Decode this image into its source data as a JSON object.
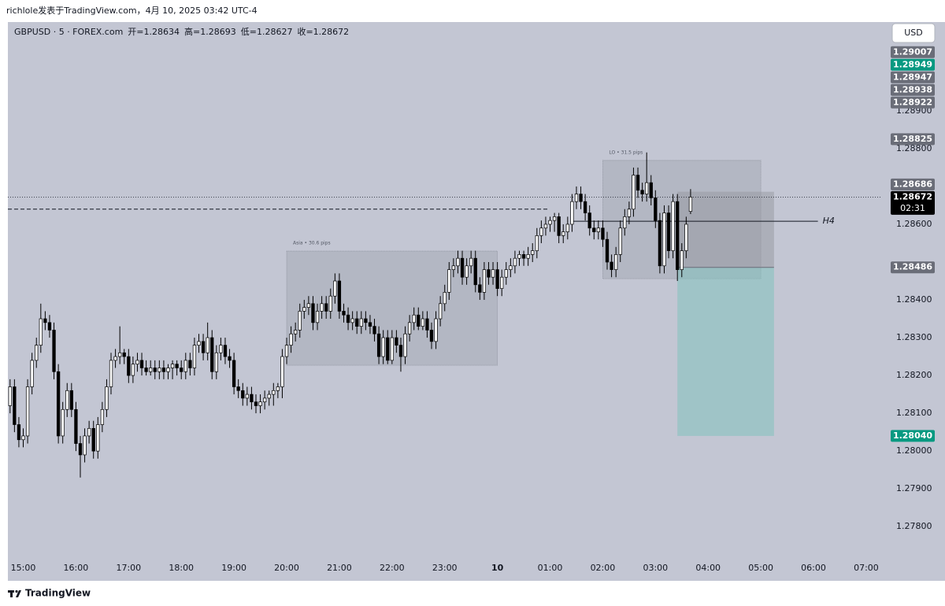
{
  "caption": "richlole发表于TradingView.com，4月 10, 2025 03:42 UTC-4",
  "brand": "TradingView",
  "currency_button": "USD",
  "chart_data": {
    "type": "candlestick",
    "title": "GBPUSD · 5 · FOREX.com",
    "ohlc_labels": [
      "开=",
      "高=",
      "低=",
      "收="
    ],
    "ohlc": [
      [
        1.2812,
        1.2819,
        1.281,
        1.2817
      ],
      [
        1.2817,
        1.2819,
        1.2805,
        1.2807
      ],
      [
        1.2807,
        1.2809,
        1.2801,
        1.2803
      ],
      [
        1.2803,
        1.2806,
        1.2801,
        1.2804
      ],
      [
        1.2804,
        1.2819,
        1.2802,
        1.2817
      ],
      [
        1.2817,
        1.2826,
        1.2815,
        1.2824
      ],
      [
        1.2824,
        1.283,
        1.2822,
        1.2828
      ],
      [
        1.2828,
        1.2839,
        1.2826,
        1.2835
      ],
      [
        1.2835,
        1.2837,
        1.2832,
        1.2834
      ],
      [
        1.2834,
        1.2836,
        1.283,
        1.2832
      ],
      [
        1.2832,
        1.2834,
        1.2819,
        1.2821
      ],
      [
        1.2821,
        1.2823,
        1.2802,
        1.2804
      ],
      [
        1.2804,
        1.2813,
        1.2802,
        1.2811
      ],
      [
        1.2811,
        1.2818,
        1.2809,
        1.2816
      ],
      [
        1.2816,
        1.2818,
        1.2809,
        1.2811
      ],
      [
        1.2811,
        1.2813,
        1.28,
        1.2802
      ],
      [
        1.2802,
        1.2804,
        1.2793,
        1.2799
      ],
      [
        1.2799,
        1.2806,
        1.2797,
        1.2804
      ],
      [
        1.2804,
        1.2808,
        1.2802,
        1.2806
      ],
      [
        1.2806,
        1.2808,
        1.2798,
        1.28
      ],
      [
        1.28,
        1.2809,
        1.2798,
        1.2807
      ],
      [
        1.2807,
        1.2813,
        1.2805,
        1.2811
      ],
      [
        1.2811,
        1.2819,
        1.2809,
        1.2817
      ],
      [
        1.2817,
        1.2826,
        1.2815,
        1.2824
      ],
      [
        1.2824,
        1.2827,
        1.2822,
        1.2825
      ],
      [
        1.2825,
        1.2833,
        1.2823,
        1.2826
      ],
      [
        1.2826,
        1.2827,
        1.2823,
        1.2825
      ],
      [
        1.2825,
        1.2827,
        1.2818,
        1.282
      ],
      [
        1.282,
        1.2825,
        1.2818,
        1.2823
      ],
      [
        1.2823,
        1.2826,
        1.2821,
        1.2824
      ],
      [
        1.2824,
        1.2826,
        1.282,
        1.2822
      ],
      [
        1.2822,
        1.2824,
        1.282,
        1.2821
      ],
      [
        1.2821,
        1.2824,
        1.282,
        1.2822
      ],
      [
        1.2822,
        1.2824,
        1.2819,
        1.2821
      ],
      [
        1.2821,
        1.2824,
        1.2819,
        1.2822
      ],
      [
        1.2822,
        1.2824,
        1.2819,
        1.2821
      ],
      [
        1.2821,
        1.2823,
        1.2819,
        1.2822
      ],
      [
        1.2822,
        1.2824,
        1.2819,
        1.2823
      ],
      [
        1.2823,
        1.2824,
        1.282,
        1.2822
      ],
      [
        1.2822,
        1.2824,
        1.2819,
        1.2821
      ],
      [
        1.2821,
        1.2826,
        1.2819,
        1.2824
      ],
      [
        1.2824,
        1.2826,
        1.282,
        1.2822
      ],
      [
        1.2822,
        1.283,
        1.282,
        1.2828
      ],
      [
        1.2828,
        1.2831,
        1.2826,
        1.2829
      ],
      [
        1.2829,
        1.2831,
        1.2824,
        1.2826
      ],
      [
        1.2826,
        1.2834,
        1.2824,
        1.283
      ],
      [
        1.283,
        1.2832,
        1.2819,
        1.2821
      ],
      [
        1.2821,
        1.2828,
        1.2819,
        1.2826
      ],
      [
        1.2826,
        1.283,
        1.2824,
        1.2828
      ],
      [
        1.2828,
        1.283,
        1.2823,
        1.2825
      ],
      [
        1.2825,
        1.2827,
        1.2822,
        1.2824
      ],
      [
        1.2824,
        1.2826,
        1.2815,
        1.2817
      ],
      [
        1.2817,
        1.2819,
        1.2814,
        1.2816
      ],
      [
        1.2816,
        1.2818,
        1.2812,
        1.2814
      ],
      [
        1.2814,
        1.2817,
        1.2812,
        1.2815
      ],
      [
        1.2815,
        1.2817,
        1.2811,
        1.2813
      ],
      [
        1.2813,
        1.2815,
        1.281,
        1.2812
      ],
      [
        1.2812,
        1.2815,
        1.281,
        1.2813
      ],
      [
        1.2813,
        1.2816,
        1.2811,
        1.2814
      ],
      [
        1.2814,
        1.2816,
        1.2812,
        1.2815
      ],
      [
        1.2815,
        1.2818,
        1.2812,
        1.2816
      ],
      [
        1.2816,
        1.2818,
        1.2814,
        1.2817
      ],
      [
        1.2817,
        1.2827,
        1.2814,
        1.2825
      ],
      [
        1.2825,
        1.283,
        1.2823,
        1.2828
      ],
      [
        1.2828,
        1.2833,
        1.2826,
        1.2831
      ],
      [
        1.2831,
        1.2834,
        1.2829,
        1.2832
      ],
      [
        1.2832,
        1.2839,
        1.283,
        1.2837
      ],
      [
        1.2837,
        1.284,
        1.2835,
        1.2838
      ],
      [
        1.2838,
        1.2841,
        1.2836,
        1.2839
      ],
      [
        1.2839,
        1.2841,
        1.2832,
        1.2834
      ],
      [
        1.2834,
        1.2839,
        1.2832,
        1.2837
      ],
      [
        1.2837,
        1.2841,
        1.2835,
        1.2839
      ],
      [
        1.2839,
        1.2841,
        1.2835,
        1.2837
      ],
      [
        1.2837,
        1.2843,
        1.2835,
        1.2841
      ],
      [
        1.2841,
        1.2847,
        1.2839,
        1.2845
      ],
      [
        1.2845,
        1.2847,
        1.2835,
        1.2837
      ],
      [
        1.2837,
        1.2839,
        1.2834,
        1.2836
      ],
      [
        1.2836,
        1.2838,
        1.2832,
        1.2834
      ],
      [
        1.2834,
        1.2837,
        1.2832,
        1.2835
      ],
      [
        1.2835,
        1.2837,
        1.2831,
        1.2833
      ],
      [
        1.2833,
        1.2837,
        1.2831,
        1.2835
      ],
      [
        1.2835,
        1.2837,
        1.2832,
        1.2834
      ],
      [
        1.2834,
        1.2836,
        1.2831,
        1.2833
      ],
      [
        1.2833,
        1.2835,
        1.2829,
        1.2831
      ],
      [
        1.2831,
        1.2833,
        1.2823,
        1.2825
      ],
      [
        1.2825,
        1.2832,
        1.2823,
        1.283
      ],
      [
        1.283,
        1.2832,
        1.2823,
        1.2824
      ],
      [
        1.2824,
        1.2832,
        1.2823,
        1.283
      ],
      [
        1.283,
        1.2832,
        1.2826,
        1.2828
      ],
      [
        1.2828,
        1.283,
        1.2821,
        1.2825
      ],
      [
        1.2825,
        1.2833,
        1.2823,
        1.2831
      ],
      [
        1.2831,
        1.2836,
        1.2829,
        1.2834
      ],
      [
        1.2834,
        1.2838,
        1.2832,
        1.2836
      ],
      [
        1.2836,
        1.2838,
        1.2832,
        1.2833
      ],
      [
        1.2833,
        1.2837,
        1.2832,
        1.2835
      ],
      [
        1.2835,
        1.2837,
        1.283,
        1.2832
      ],
      [
        1.2832,
        1.2834,
        1.2827,
        1.2829
      ],
      [
        1.2829,
        1.2837,
        1.2827,
        1.2835
      ],
      [
        1.2835,
        1.2841,
        1.2833,
        1.2839
      ],
      [
        1.2839,
        1.2844,
        1.2837,
        1.2842
      ],
      [
        1.2842,
        1.285,
        1.284,
        1.2848
      ],
      [
        1.2848,
        1.2851,
        1.2846,
        1.2849
      ],
      [
        1.2849,
        1.2853,
        1.2847,
        1.2851
      ],
      [
        1.2851,
        1.2853,
        1.2844,
        1.2846
      ],
      [
        1.2846,
        1.2851,
        1.2844,
        1.2849
      ],
      [
        1.2849,
        1.2853,
        1.2847,
        1.2851
      ],
      [
        1.2851,
        1.2853,
        1.2842,
        1.2844
      ],
      [
        1.2844,
        1.2846,
        1.284,
        1.2842
      ],
      [
        1.2842,
        1.285,
        1.284,
        1.2848
      ],
      [
        1.2848,
        1.285,
        1.2844,
        1.2846
      ],
      [
        1.2846,
        1.285,
        1.2844,
        1.2848
      ],
      [
        1.2848,
        1.285,
        1.2841,
        1.2843
      ],
      [
        1.2843,
        1.2848,
        1.2841,
        1.2846
      ],
      [
        1.2846,
        1.285,
        1.2844,
        1.2848
      ],
      [
        1.2848,
        1.2851,
        1.2846,
        1.2849
      ],
      [
        1.2849,
        1.2853,
        1.2847,
        1.2851
      ],
      [
        1.2851,
        1.2853,
        1.2849,
        1.2852
      ],
      [
        1.2852,
        1.2853,
        1.2849,
        1.2851
      ],
      [
        1.2851,
        1.2854,
        1.2849,
        1.2852
      ],
      [
        1.2852,
        1.2855,
        1.285,
        1.2853
      ],
      [
        1.2853,
        1.2859,
        1.2851,
        1.2857
      ],
      [
        1.2857,
        1.2861,
        1.2855,
        1.2859
      ],
      [
        1.2859,
        1.2862,
        1.2857,
        1.286
      ],
      [
        1.286,
        1.2862,
        1.2858,
        1.2861
      ],
      [
        1.2861,
        1.2863,
        1.2858,
        1.2862
      ],
      [
        1.2862,
        1.2863,
        1.2855,
        1.2857
      ],
      [
        1.2857,
        1.286,
        1.2855,
        1.2858
      ],
      [
        1.2858,
        1.2862,
        1.2856,
        1.286
      ],
      [
        1.286,
        1.2868,
        1.2858,
        1.2866
      ],
      [
        1.2866,
        1.287,
        1.2864,
        1.2868
      ],
      [
        1.2868,
        1.287,
        1.2864,
        1.2866
      ],
      [
        1.2866,
        1.2868,
        1.2861,
        1.2863
      ],
      [
        1.2863,
        1.2865,
        1.2857,
        1.2859
      ],
      [
        1.2859,
        1.2861,
        1.2856,
        1.2858
      ],
      [
        1.2858,
        1.2861,
        1.2856,
        1.2859
      ],
      [
        1.2859,
        1.2861,
        1.2854,
        1.2856
      ],
      [
        1.2856,
        1.2858,
        1.2848,
        1.285
      ],
      [
        1.285,
        1.2852,
        1.2846,
        1.2848
      ],
      [
        1.2848,
        1.2854,
        1.2846,
        1.2852
      ],
      [
        1.2852,
        1.2861,
        1.285,
        1.2859
      ],
      [
        1.2859,
        1.2864,
        1.2857,
        1.2862
      ],
      [
        1.2862,
        1.2866,
        1.286,
        1.2864
      ],
      [
        1.2864,
        1.2875,
        1.2862,
        1.2873
      ],
      [
        1.2873,
        1.2875,
        1.2867,
        1.2869
      ],
      [
        1.2869,
        1.2871,
        1.2866,
        1.2868
      ],
      [
        1.2868,
        1.2879,
        1.2866,
        1.2871
      ],
      [
        1.2871,
        1.2873,
        1.2865,
        1.2867
      ],
      [
        1.2867,
        1.2869,
        1.2859,
        1.2861
      ],
      [
        1.2861,
        1.2863,
        1.2847,
        1.2849
      ],
      [
        1.2849,
        1.2865,
        1.2847,
        1.2863
      ],
      [
        1.2863,
        1.2865,
        1.2851,
        1.2853
      ],
      [
        1.2853,
        1.2868,
        1.2851,
        1.2866
      ],
      [
        1.2866,
        1.2868,
        1.2845,
        1.2848
      ],
      [
        1.2848,
        1.2855,
        1.2846,
        1.2853
      ],
      [
        1.2853,
        1.2862,
        1.2851,
        1.286
      ],
      [
        1.28634,
        1.28693,
        1.28627,
        1.28672
      ]
    ],
    "xlim": [
      -0.5,
      198.6
    ],
    "xticks": [
      {
        "value": 3,
        "label": "15:00"
      },
      {
        "value": 15,
        "label": "16:00"
      },
      {
        "value": 27,
        "label": "17:00"
      },
      {
        "value": 39,
        "label": "18:00"
      },
      {
        "value": 51,
        "label": "19:00"
      },
      {
        "value": 63,
        "label": "20:00"
      },
      {
        "value": 75,
        "label": "21:00"
      },
      {
        "value": 87,
        "label": "22:00"
      },
      {
        "value": 99,
        "label": "23:00"
      },
      {
        "value": 111,
        "label": "10"
      },
      {
        "value": 123,
        "label": "01:00"
      },
      {
        "value": 135,
        "label": "02:00"
      },
      {
        "value": 147,
        "label": "03:00"
      },
      {
        "value": 159,
        "label": "04:00"
      },
      {
        "value": 171,
        "label": "05:00"
      },
      {
        "value": 183,
        "label": "06:00"
      },
      {
        "value": 195,
        "label": "07:00"
      }
    ],
    "ylim": [
      1.27663,
      1.29135
    ],
    "yticks": [
      {
        "value": 1.289,
        "label": "1.28900"
      },
      {
        "value": 1.288,
        "label": "1.28800"
      },
      {
        "value": 1.286,
        "label": "1.28600"
      },
      {
        "value": 1.284,
        "label": "1.28400"
      },
      {
        "value": 1.283,
        "label": "1.28300"
      },
      {
        "value": 1.282,
        "label": "1.28200"
      },
      {
        "value": 1.281,
        "label": "1.28100"
      },
      {
        "value": 1.28,
        "label": "1.28000"
      },
      {
        "value": 1.279,
        "label": "1.27900"
      },
      {
        "value": 1.278,
        "label": "1.27800"
      }
    ],
    "up_color": "#ffffff",
    "down_color": "#000000",
    "background": "#c3c6d3",
    "countdown": "02:31",
    "price_labels": [
      {
        "value": 1.29007,
        "color": "#6a6d78"
      },
      {
        "value": 1.28949,
        "color": "#089981"
      },
      {
        "value": 1.28947,
        "color": "#6a6d78"
      },
      {
        "value": 1.28938,
        "color": "#6a6d78"
      },
      {
        "value": 1.28922,
        "color": "#6a6d78"
      },
      {
        "value": 1.28825,
        "color": "#6a6d78"
      }
    ],
    "lines": [
      {
        "price": 1.2864,
        "x": [
          -0.5,
          122.7
        ],
        "style": "dashed"
      },
      {
        "price": 1.28608,
        "x": [
          128,
          184
        ],
        "style": "solid",
        "label": "H4"
      }
    ],
    "boxes": [
      {
        "label": "Asia • 30.6 pips",
        "x": [
          63,
          111
        ],
        "y": [
          1.28227,
          1.28529
        ]
      },
      {
        "label": "LO • 31.5 pips",
        "x": [
          135,
          171
        ],
        "y": [
          1.28456,
          1.28769
        ]
      }
    ],
    "position": {
      "x": [
        152,
        174
      ],
      "stop": 1.28686,
      "entry": 1.28486,
      "target": {
        "value": 1.2804,
        "label": "1.28040"
      },
      "stop_color": "#6a6d78",
      "target_color": "#089981"
    }
  }
}
